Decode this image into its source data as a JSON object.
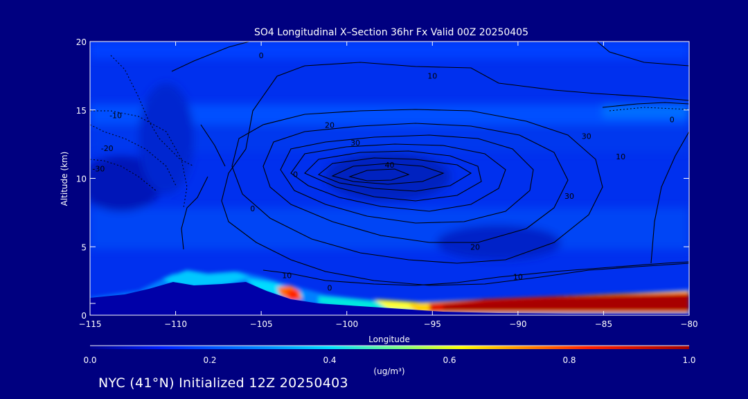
{
  "chart_data": {
    "type": "heatmap",
    "title": "SO4 Longitudinal X–Section 36hr  Fx Valid 00Z 20250405",
    "xlabel": "Longitude",
    "ylabel": "Altitude (km)",
    "xlim": [
      -115,
      -80
    ],
    "ylim": [
      0,
      20
    ],
    "x_ticks": [
      "−115",
      "−110",
      "−105",
      "−100",
      "−95",
      "−90",
      "−85",
      "−80"
    ],
    "y_ticks": [
      "0",
      "5",
      "10",
      "15",
      "20"
    ],
    "colorbar": {
      "min": 0.0,
      "max": 1.0,
      "ticks": [
        "0.0",
        "0.2",
        "0.4",
        "0.6",
        "0.8",
        "1.0"
      ],
      "units": "(ug/m³)"
    },
    "terrain_km": [
      [
        -115,
        1.3
      ],
      [
        -112,
        1.5
      ],
      [
        -110,
        2.4
      ],
      [
        -108,
        2.0
      ],
      [
        -106,
        2.5
      ],
      [
        -105,
        2.1
      ],
      [
        -103,
        1.2
      ],
      [
        -100,
        0.7
      ],
      [
        -97,
        0.4
      ],
      [
        -95,
        0.3
      ],
      [
        -90,
        0.2
      ],
      [
        -85,
        0.1
      ],
      [
        -80,
        0.1
      ]
    ],
    "shading": {
      "low_plume_core": {
        "x": [
          -95,
          -80
        ],
        "z": [
          0.4,
          1.4
        ],
        "value": 1.0
      },
      "high_values_front_range": {
        "x": [
          -104,
          -102.5
        ],
        "z": [
          1.2,
          2.0
        ],
        "value": 0.85
      }
    },
    "contour_labels": [
      {
        "text": "0",
        "lon": -105.0,
        "alt": 19.0
      },
      {
        "text": "10",
        "lon": -95.0,
        "alt": 17.5
      },
      {
        "text": "-10",
        "lon": -113.5,
        "alt": 14.6
      },
      {
        "text": "0",
        "lon": -81.0,
        "alt": 14.3
      },
      {
        "text": "20",
        "lon": -101.0,
        "alt": 13.9
      },
      {
        "text": "30",
        "lon": -99.5,
        "alt": 12.6
      },
      {
        "text": "30",
        "lon": -86.0,
        "alt": 13.1
      },
      {
        "text": "-20",
        "lon": -114.0,
        "alt": 12.2
      },
      {
        "text": "10",
        "lon": -84.0,
        "alt": 11.6
      },
      {
        "text": "40",
        "lon": -97.5,
        "alt": 11.0
      },
      {
        "text": "-30",
        "lon": -114.5,
        "alt": 10.7
      },
      {
        "text": "0",
        "lon": -103.0,
        "alt": 10.3
      },
      {
        "text": "0",
        "lon": -105.5,
        "alt": 7.8
      },
      {
        "text": "30",
        "lon": -87.0,
        "alt": 8.7
      },
      {
        "text": "20",
        "lon": -92.5,
        "alt": 5.0
      },
      {
        "text": "10",
        "lon": -90.0,
        "alt": 2.8
      },
      {
        "text": "10",
        "lon": -103.5,
        "alt": 2.9
      },
      {
        "text": "0",
        "lon": -101.0,
        "alt": 2.0
      }
    ]
  },
  "footer": "NYC (41°N) Initialized 12Z 20250403"
}
